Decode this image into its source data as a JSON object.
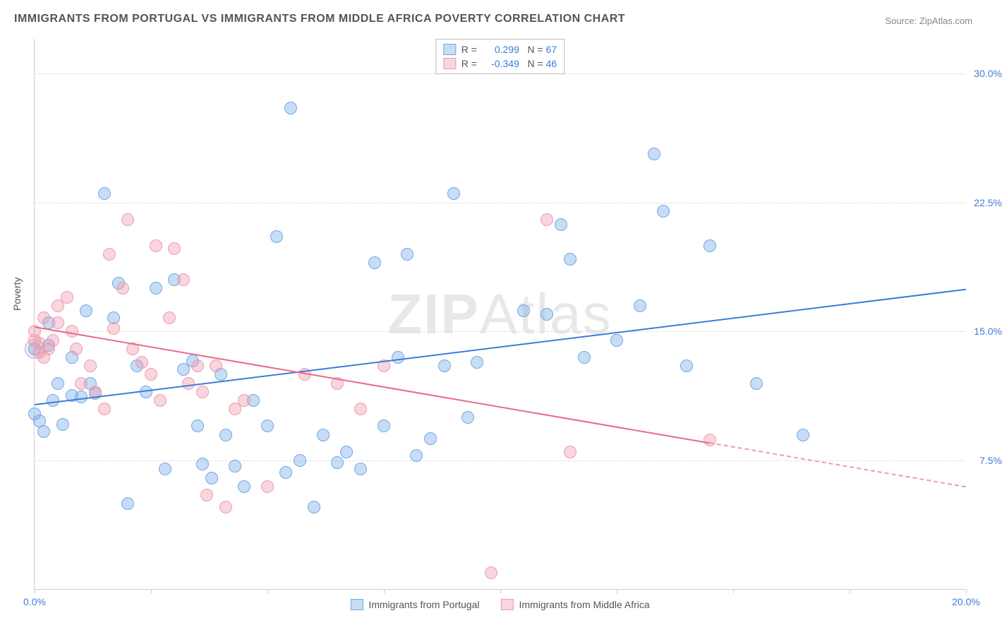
{
  "title": "IMMIGRANTS FROM PORTUGAL VS IMMIGRANTS FROM MIDDLE AFRICA POVERTY CORRELATION CHART",
  "source_label": "Source:",
  "source_name": "ZipAtlas.com",
  "ylabel": "Poverty",
  "watermark": "ZIPAtlas",
  "chart": {
    "type": "scatter",
    "background_color": "#ffffff",
    "grid_color": "#dddddd",
    "axis_color": "#cccccc",
    "xlim": [
      0.0,
      20.0
    ],
    "ylim": [
      0.0,
      32.0
    ],
    "x_tick_values": [
      0.0,
      2.5,
      5.0,
      7.5,
      10.0,
      12.5,
      15.0,
      17.5,
      20.0
    ],
    "x_tick_labels_shown": {
      "0": "0.0%",
      "8": "20.0%"
    },
    "x_tick_color": "#3b7dd8",
    "y_ticks": [
      {
        "v": 7.5,
        "label": "7.5%"
      },
      {
        "v": 15.0,
        "label": "15.0%"
      },
      {
        "v": 22.5,
        "label": "22.5%"
      },
      {
        "v": 30.0,
        "label": "30.0%"
      }
    ],
    "y_tick_color": "#3b7dd8",
    "point_radius": 9,
    "point_opacity": 0.55,
    "series": [
      {
        "name": "Immigrants from Portugal",
        "color": "#3b7dd8",
        "fill": "rgba(118,170,230,0.4)",
        "stroke": "#6fa8e8",
        "r_label": "R = ",
        "r_value": "0.299",
        "n_label": "N = ",
        "n_value": "67",
        "trend": {
          "x1": 0.0,
          "y1": 10.8,
          "x2": 20.0,
          "y2": 17.5,
          "solid_until_x": 20.0
        },
        "points": [
          [
            0.0,
            10.2
          ],
          [
            0.1,
            9.8
          ],
          [
            0.2,
            9.2
          ],
          [
            0.3,
            14.2
          ],
          [
            0.3,
            15.5
          ],
          [
            0.4,
            11.0
          ],
          [
            0.5,
            12.0
          ],
          [
            0.6,
            9.6
          ],
          [
            0.8,
            11.3
          ],
          [
            0.8,
            13.5
          ],
          [
            1.0,
            11.2
          ],
          [
            1.1,
            16.2
          ],
          [
            1.2,
            12.0
          ],
          [
            1.3,
            11.4
          ],
          [
            1.5,
            23.0
          ],
          [
            1.7,
            15.8
          ],
          [
            1.8,
            17.8
          ],
          [
            2.0,
            5.0
          ],
          [
            2.2,
            13.0
          ],
          [
            2.4,
            11.5
          ],
          [
            2.6,
            17.5
          ],
          [
            2.8,
            7.0
          ],
          [
            3.0,
            18.0
          ],
          [
            3.2,
            12.8
          ],
          [
            3.4,
            13.3
          ],
          [
            3.5,
            9.5
          ],
          [
            3.6,
            7.3
          ],
          [
            3.8,
            6.5
          ],
          [
            4.0,
            12.5
          ],
          [
            4.1,
            9.0
          ],
          [
            4.3,
            7.2
          ],
          [
            4.5,
            6.0
          ],
          [
            4.7,
            11.0
          ],
          [
            5.0,
            9.5
          ],
          [
            5.2,
            20.5
          ],
          [
            5.4,
            6.8
          ],
          [
            5.5,
            28.0
          ],
          [
            5.7,
            7.5
          ],
          [
            6.0,
            4.8
          ],
          [
            6.2,
            9.0
          ],
          [
            6.5,
            7.4
          ],
          [
            6.7,
            8.0
          ],
          [
            7.0,
            7.0
          ],
          [
            7.3,
            19.0
          ],
          [
            7.5,
            9.5
          ],
          [
            7.8,
            13.5
          ],
          [
            8.0,
            19.5
          ],
          [
            8.2,
            7.8
          ],
          [
            8.5,
            8.8
          ],
          [
            8.8,
            13.0
          ],
          [
            9.0,
            23.0
          ],
          [
            9.3,
            10.0
          ],
          [
            9.5,
            13.2
          ],
          [
            10.5,
            16.2
          ],
          [
            11.0,
            16.0
          ],
          [
            11.3,
            21.2
          ],
          [
            11.5,
            19.2
          ],
          [
            11.8,
            13.5
          ],
          [
            12.5,
            14.5
          ],
          [
            13.3,
            25.3
          ],
          [
            13.5,
            22.0
          ],
          [
            14.0,
            13.0
          ],
          [
            14.5,
            20.0
          ],
          [
            15.5,
            12.0
          ],
          [
            16.5,
            9.0
          ],
          [
            13.0,
            16.5
          ],
          [
            0.0,
            14.0
          ]
        ]
      },
      {
        "name": "Immigrants from Middle Africa",
        "color": "#e86a8a",
        "fill": "rgba(240,150,170,0.4)",
        "stroke": "#f09baf",
        "r_label": "R = ",
        "r_value": "-0.349",
        "n_label": "N = ",
        "n_value": "46",
        "trend": {
          "x1": 0.0,
          "y1": 15.3,
          "x2": 20.0,
          "y2": 6.0,
          "solid_until_x": 14.5
        },
        "points": [
          [
            0.0,
            15.0
          ],
          [
            0.0,
            14.5
          ],
          [
            0.1,
            13.8
          ],
          [
            0.1,
            14.3
          ],
          [
            0.2,
            15.8
          ],
          [
            0.2,
            13.5
          ],
          [
            0.3,
            14.0
          ],
          [
            0.4,
            14.5
          ],
          [
            0.5,
            15.5
          ],
          [
            0.5,
            16.5
          ],
          [
            0.7,
            17.0
          ],
          [
            0.8,
            15.0
          ],
          [
            0.9,
            14.0
          ],
          [
            1.0,
            12.0
          ],
          [
            1.2,
            13.0
          ],
          [
            1.3,
            11.5
          ],
          [
            1.5,
            10.5
          ],
          [
            1.6,
            19.5
          ],
          [
            1.7,
            15.2
          ],
          [
            1.9,
            17.5
          ],
          [
            2.0,
            21.5
          ],
          [
            2.1,
            14.0
          ],
          [
            2.3,
            13.2
          ],
          [
            2.5,
            12.5
          ],
          [
            2.6,
            20.0
          ],
          [
            2.7,
            11.0
          ],
          [
            2.9,
            15.8
          ],
          [
            3.0,
            19.8
          ],
          [
            3.2,
            18.0
          ],
          [
            3.3,
            12.0
          ],
          [
            3.5,
            13.0
          ],
          [
            3.6,
            11.5
          ],
          [
            3.7,
            5.5
          ],
          [
            3.9,
            13.0
          ],
          [
            4.1,
            4.8
          ],
          [
            4.3,
            10.5
          ],
          [
            4.5,
            11.0
          ],
          [
            5.0,
            6.0
          ],
          [
            5.8,
            12.5
          ],
          [
            6.5,
            12.0
          ],
          [
            7.0,
            10.5
          ],
          [
            7.5,
            13.0
          ],
          [
            9.8,
            1.0
          ],
          [
            11.0,
            21.5
          ],
          [
            11.5,
            8.0
          ],
          [
            14.5,
            8.7
          ]
        ]
      }
    ]
  }
}
